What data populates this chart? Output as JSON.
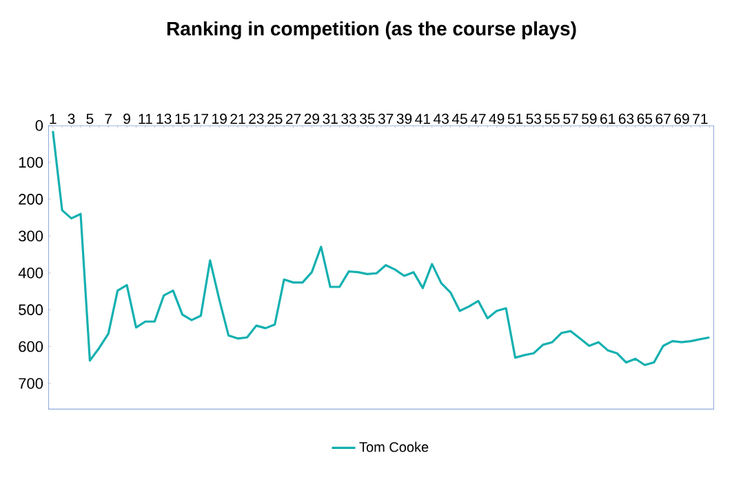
{
  "chart_data": {
    "type": "line",
    "title": "Ranking in competition (as the course plays)",
    "categories": [
      "1",
      null,
      "3",
      null,
      "5",
      null,
      "7",
      null,
      "9",
      null,
      "11",
      null,
      "13",
      null,
      "15",
      null,
      "17",
      null,
      "19",
      null,
      "21",
      null,
      "23",
      null,
      "25",
      null,
      "27",
      null,
      "29",
      null,
      "31",
      null,
      "33",
      null,
      "35",
      null,
      "37",
      null,
      "39",
      null,
      "41",
      null,
      "43",
      null,
      "45",
      null,
      "47",
      null,
      "49",
      null,
      "51",
      null,
      "53",
      null,
      "55",
      null,
      "57",
      null,
      "59",
      null,
      "61",
      null,
      "63",
      null,
      "65",
      null,
      "67",
      null,
      "69",
      null,
      "71",
      null
    ],
    "series": [
      {
        "name": "Tom Cooke",
        "color": "#14b0b0",
        "values": [
          15,
          230,
          252,
          240,
          638,
          604,
          565,
          448,
          433,
          548,
          532,
          532,
          461,
          448,
          513,
          528,
          516,
          366,
          473,
          570,
          578,
          575,
          543,
          550,
          540,
          418,
          426,
          426,
          398,
          329,
          438,
          438,
          396,
          398,
          403,
          401,
          379,
          391,
          408,
          398,
          441,
          376,
          428,
          453,
          503,
          491,
          476,
          523,
          503,
          496,
          630,
          623,
          618,
          595,
          588,
          563,
          558,
          578,
          598,
          588,
          610,
          618,
          643,
          633,
          650,
          643,
          598,
          585,
          588,
          585,
          580,
          575
        ]
      }
    ],
    "ylim": [
      770,
      0
    ],
    "yticks": [
      0,
      100,
      200,
      300,
      400,
      500,
      600,
      700
    ],
    "legend": "bottom",
    "grid": false,
    "marker": "none",
    "line_style": "solid"
  }
}
